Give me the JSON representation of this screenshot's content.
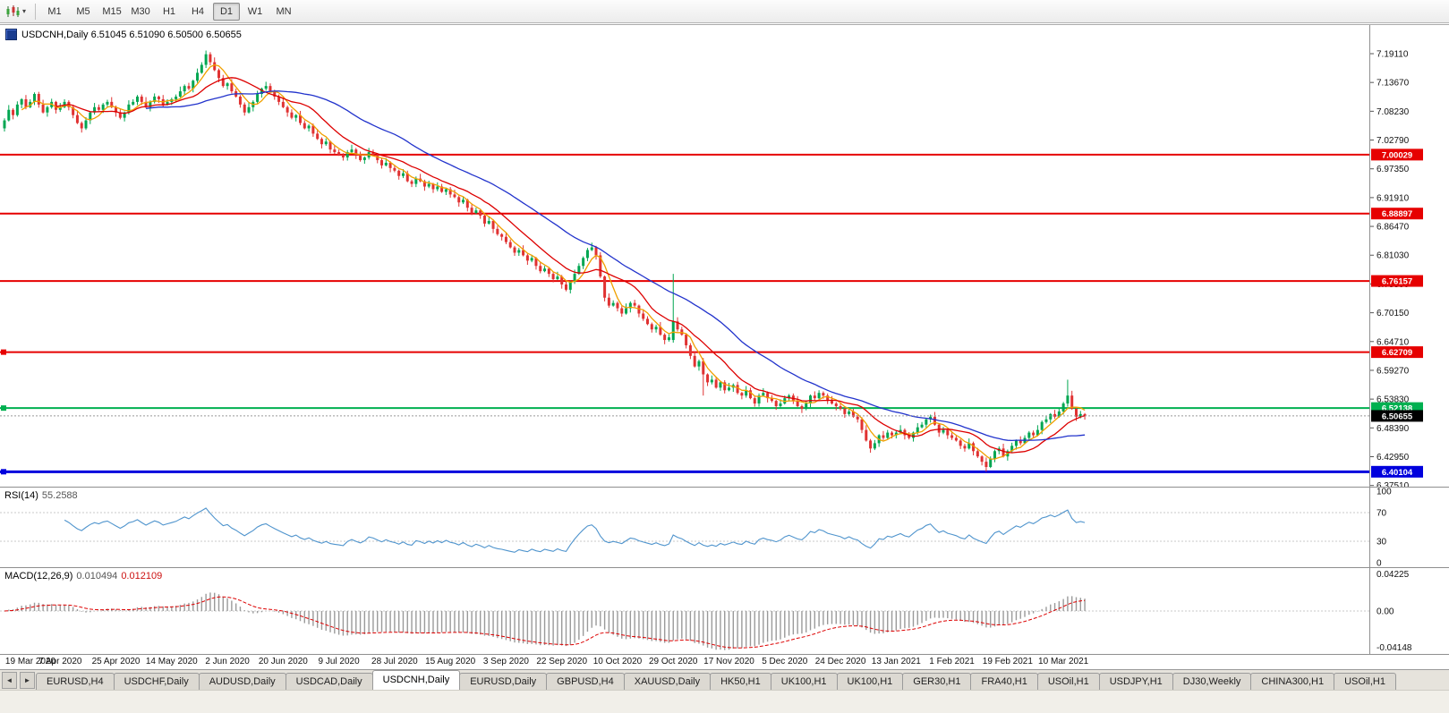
{
  "toolbar": {
    "chart_type_icon": "candlestick-chart-icon",
    "dropdown_icon": "chevron-down-icon",
    "timeframes": [
      "M1",
      "M5",
      "M15",
      "M30",
      "H1",
      "H4",
      "D1",
      "W1",
      "MN"
    ],
    "active_timeframe": "D1"
  },
  "chart": {
    "title_text": "USDCNH,Daily 6.51045 6.51090 6.50500 6.50655",
    "symbol": "USDCNH",
    "period": "Daily",
    "ohlc": {
      "open": "6.51045",
      "high": "6.51090",
      "low": "6.50500",
      "close": "6.50655"
    },
    "price_axis": [
      "7.19110",
      "7.13670",
      "7.08230",
      "7.02790",
      "6.97350",
      "6.91910",
      "6.86470",
      "6.81030",
      "6.75590",
      "6.70150",
      "6.64710",
      "6.59270",
      "6.53830",
      "6.48390",
      "6.42950",
      "6.37510"
    ],
    "hlines": [
      {
        "price": 7.00029,
        "label": "7.00029",
        "color": "#e60000",
        "width": 2,
        "handle": false
      },
      {
        "price": 6.88897,
        "label": "6.88897",
        "color": "#e60000",
        "width": 2,
        "handle": false
      },
      {
        "price": 6.76157,
        "label": "6.76157",
        "color": "#e60000",
        "width": 2,
        "handle": false
      },
      {
        "price": 6.62709,
        "label": "6.62709",
        "color": "#e60000",
        "width": 2,
        "handle": true
      },
      {
        "price": 6.52138,
        "label": "6.52138",
        "color": "#00b050",
        "width": 2,
        "handle": true
      },
      {
        "price": 6.40104,
        "label": "6.40104",
        "color": "#0000dd",
        "width": 3,
        "handle": true
      }
    ],
    "current_price": {
      "value": 6.50655,
      "label": "6.50655",
      "box_color": "#000000"
    },
    "date_axis": [
      "19 Mar 2020",
      "7 Apr 2020",
      "25 Apr 2020",
      "14 May 2020",
      "2 Jun 2020",
      "20 Jun 2020",
      "9 Jul 2020",
      "28 Jul 2020",
      "15 Aug 2020",
      "3 Sep 2020",
      "22 Sep 2020",
      "10 Oct 2020",
      "29 Oct 2020",
      "17 Nov 2020",
      "5 Dec 2020",
      "24 Dec 2020",
      "13 Jan 2021",
      "1 Feb 2021",
      "19 Feb 2021",
      "10 Mar 2021"
    ]
  },
  "chart_data": {
    "type": "candlestick",
    "symbol": "USDCNH",
    "timeframe": "Daily",
    "ylim": [
      6.3751,
      7.1911
    ],
    "x_labels": [
      "19 Mar 2020",
      "7 Apr 2020",
      "25 Apr 2020",
      "14 May 2020",
      "2 Jun 2020",
      "20 Jun 2020",
      "9 Jul 2020",
      "28 Jul 2020",
      "15 Aug 2020",
      "3 Sep 2020",
      "22 Sep 2020",
      "10 Oct 2020",
      "29 Oct 2020",
      "17 Nov 2020",
      "5 Dec 2020",
      "24 Dec 2020",
      "13 Jan 2021",
      "1 Feb 2021",
      "19 Feb 2021",
      "10 Mar 2021"
    ],
    "first_open": 7.05,
    "closes": [
      7.065,
      7.085,
      7.075,
      7.095,
      7.105,
      7.09,
      7.1,
      7.115,
      7.095,
      7.08,
      7.09,
      7.1,
      7.085,
      7.09,
      7.1,
      7.09,
      7.075,
      7.06,
      7.05,
      7.065,
      7.08,
      7.09,
      7.085,
      7.095,
      7.1,
      7.09,
      7.08,
      7.07,
      7.08,
      7.095,
      7.1,
      7.11,
      7.1,
      7.09,
      7.1,
      7.11,
      7.105,
      7.095,
      7.1,
      7.105,
      7.11,
      7.12,
      7.13,
      7.125,
      7.14,
      7.155,
      7.17,
      7.19,
      7.175,
      7.16,
      7.145,
      7.13,
      7.135,
      7.12,
      7.11,
      7.095,
      7.08,
      7.09,
      7.1,
      7.115,
      7.125,
      7.13,
      7.12,
      7.11,
      7.1,
      7.09,
      7.08,
      7.07,
      7.075,
      7.06,
      7.05,
      7.055,
      7.04,
      7.03,
      7.02,
      7.025,
      7.01,
      7.005,
      7.0,
      6.995,
      7.005,
      7.01,
      7.0,
      6.99,
      6.995,
      7.005,
      7.0,
      6.99,
      6.98,
      6.985,
      6.975,
      6.97,
      6.96,
      6.965,
      6.95,
      6.945,
      6.955,
      6.95,
      6.94,
      6.945,
      6.935,
      6.94,
      6.93,
      6.935,
      6.925,
      6.92,
      6.91,
      6.915,
      6.9,
      6.89,
      6.895,
      6.885,
      6.87,
      6.875,
      6.86,
      6.85,
      6.845,
      6.835,
      6.825,
      6.815,
      6.82,
      6.81,
      6.8,
      6.805,
      6.79,
      6.78,
      6.785,
      6.775,
      6.765,
      6.77,
      6.755,
      6.745,
      6.76,
      6.775,
      6.79,
      6.805,
      6.82,
      6.825,
      6.81,
      6.77,
      6.73,
      6.715,
      6.72,
      6.71,
      6.7,
      6.71,
      6.72,
      6.715,
      6.7,
      6.69,
      6.68,
      6.67,
      6.675,
      6.66,
      6.65,
      6.655,
      6.685,
      6.67,
      6.66,
      6.64,
      6.62,
      6.6,
      6.61,
      6.585,
      6.57,
      6.575,
      6.56,
      6.57,
      6.555,
      6.56,
      6.565,
      6.55,
      6.545,
      6.555,
      6.54,
      6.53,
      6.545,
      6.55,
      6.54,
      6.535,
      6.525,
      6.53,
      6.54,
      6.545,
      6.535,
      6.525,
      6.52,
      6.53,
      6.545,
      6.54,
      6.55,
      6.545,
      6.535,
      6.53,
      6.525,
      6.52,
      6.51,
      6.515,
      6.505,
      6.5,
      6.48,
      6.46,
      6.445,
      6.455,
      6.47,
      6.465,
      6.475,
      6.47,
      6.475,
      6.48,
      6.47,
      6.465,
      6.475,
      6.485,
      6.49,
      6.5,
      6.505,
      6.49,
      6.475,
      6.48,
      6.47,
      6.465,
      6.46,
      6.45,
      6.445,
      6.455,
      6.44,
      6.43,
      6.42,
      6.41,
      6.425,
      6.44,
      6.445,
      6.43,
      6.44,
      6.45,
      6.46,
      6.455,
      6.465,
      6.475,
      6.47,
      6.48,
      6.495,
      6.5,
      6.51,
      6.505,
      6.515,
      6.53,
      6.545,
      6.52,
      6.505,
      6.51,
      6.5065
    ],
    "wick_upper": [
      0.004,
      0.009,
      0.003,
      0.006,
      0.002,
      0.008,
      0.005,
      0.003
    ],
    "wick_lower": [
      0.006,
      0.002,
      0.008,
      0.003,
      0.007,
      0.004,
      0.002,
      0.006
    ],
    "special_candles": {
      "47": {
        "h": 7.197
      },
      "156": {
        "o": 6.65,
        "h": 6.775,
        "l": 6.645
      },
      "163": {
        "l": 6.545
      },
      "229": {
        "l": 6.401
      },
      "248": {
        "h": 6.575
      }
    },
    "moving_averages": [
      {
        "period": 5,
        "color": "#f0a000"
      },
      {
        "period": 13,
        "color": "#dd0000"
      },
      {
        "period": 34,
        "color": "#2233cc"
      }
    ],
    "up_color": "#00a651",
    "down_color": "#e03232"
  },
  "rsi": {
    "name": "RSI(14)",
    "value": "55.2588",
    "axis": [
      "100",
      "70",
      "30",
      "0"
    ],
    "levels": [
      70,
      30
    ],
    "line_color": "#4f94cd"
  },
  "macd": {
    "name": "MACD(12,26,9)",
    "value_main": "0.010494",
    "value_signal": "0.012109",
    "axis_top": "0.04225",
    "axis_zero": "0.00",
    "axis_bottom": "-0.04148",
    "histogram_color": "#9a9a9a",
    "signal_color": "#dd0000"
  },
  "tabs": {
    "active_index": 4,
    "items": [
      "EURUSD,H4",
      "USDCHF,Daily",
      "AUDUSD,Daily",
      "USDCAD,Daily",
      "USDCNH,Daily",
      "EURUSD,Daily",
      "GBPUSD,H4",
      "XAUUSD,Daily",
      "HK50,H1",
      "UK100,H1",
      "UK100,H1",
      "GER30,H1",
      "FRA40,H1",
      "USOil,H1",
      "USDJPY,H1",
      "DJ30,Weekly",
      "CHINA300,H1",
      "USOil,H1"
    ]
  }
}
